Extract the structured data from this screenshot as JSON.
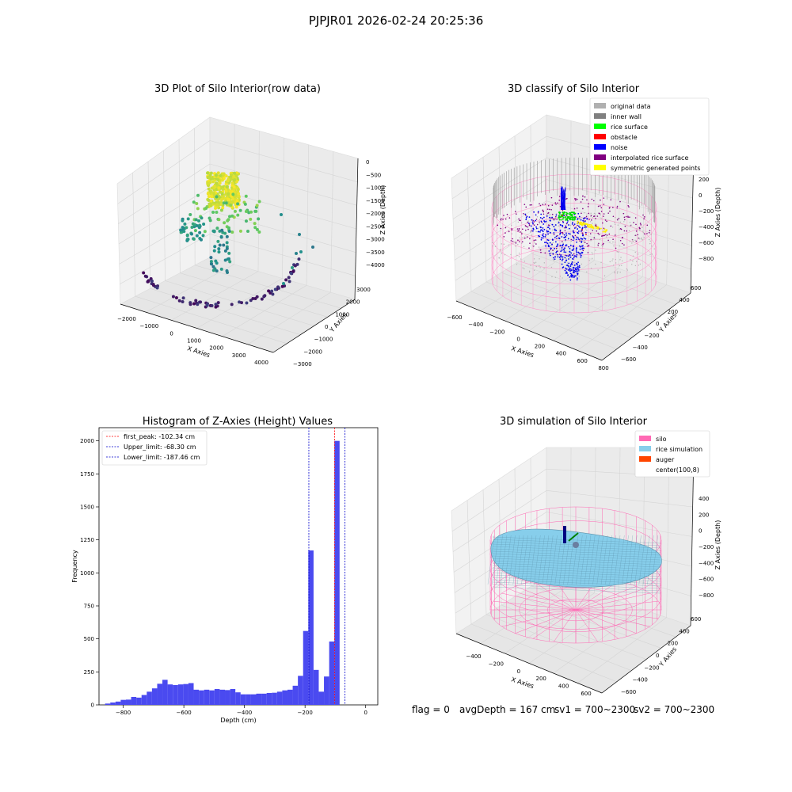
{
  "suptitle": "PJPJR01 2026-02-24 20:25:36",
  "status": {
    "flag": "flag = 0",
    "avg_depth": "avgDepth = 167 cm",
    "sv1": "sv1 = 700~2300",
    "sv2": "sv2 = 700~2300"
  },
  "chart_data": [
    {
      "type": "scatter",
      "title": "3D Plot of Silo Interior(row data)",
      "xlabel": "X Axies",
      "ylabel": "Y Axies",
      "zlabel": "Z Axies (Depth)",
      "x_ticks": [
        -2000,
        -1000,
        0,
        1000,
        2000,
        3000,
        4000
      ],
      "y_ticks": [
        -3000,
        -2000,
        -1000,
        0,
        1000,
        2000,
        3000
      ],
      "z_ticks": [
        0,
        -500,
        -1000,
        -1500,
        -2000,
        -2500,
        -3000,
        -3500,
        -4000
      ],
      "colormap": "viridis"
    },
    {
      "type": "scatter",
      "title": "3D classify of Silo Interior",
      "xlabel": "X Axies",
      "ylabel": "Y Axies",
      "zlabel": "Z Axies (Depth)",
      "x_ticks": [
        -600,
        -400,
        -200,
        0,
        200,
        400,
        600,
        800
      ],
      "y_ticks": [
        -600,
        -400,
        -200,
        0,
        200,
        400,
        600
      ],
      "z_ticks": [
        200,
        0,
        -200,
        -400,
        -600,
        -800
      ],
      "legend": [
        {
          "label": "original data",
          "color": "#b0b0b0"
        },
        {
          "label": "inner wall",
          "color": "#808080"
        },
        {
          "label": "rice surface",
          "color": "#00ff00"
        },
        {
          "label": "obstacle",
          "color": "#ff0000"
        },
        {
          "label": "noise",
          "color": "#0000ff"
        },
        {
          "label": "interpolated rice surface",
          "color": "#800080"
        },
        {
          "label": "symmetric generated points",
          "color": "#ffff00"
        }
      ],
      "legend_position": "top-right"
    },
    {
      "type": "bar",
      "title": "Histogram of Z-Axies (Height) Values",
      "xlabel": "Depth (cm)",
      "ylabel": "Frequency",
      "bar_color": "#4a4af0",
      "xlim": [
        -880,
        40
      ],
      "ylim": [
        0,
        2100
      ],
      "x_ticks": [
        -800,
        -600,
        -400,
        -200,
        0
      ],
      "y_ticks": [
        0,
        250,
        500,
        750,
        1000,
        1250,
        1500,
        1750,
        2000
      ],
      "bin_width": 17.2,
      "bin_start": -860,
      "values": [
        10,
        18,
        25,
        38,
        40,
        60,
        55,
        75,
        100,
        125,
        160,
        190,
        155,
        150,
        155,
        158,
        165,
        115,
        110,
        115,
        110,
        120,
        115,
        112,
        120,
        95,
        80,
        80,
        80,
        85,
        85,
        90,
        92,
        100,
        110,
        115,
        145,
        220,
        560,
        1170,
        265,
        100,
        215,
        480,
        2000
      ],
      "vlines": [
        {
          "label": "first_peak: -102.34 cm",
          "x": -102.34,
          "color": "#ff0000"
        },
        {
          "label": "Upper_limit: -68.30 cm",
          "x": -68.3,
          "color": "#0000cc"
        },
        {
          "label": "Lower_limit: -187.46 cm",
          "x": -187.46,
          "color": "#0000cc"
        }
      ],
      "legend_position": "top-left"
    },
    {
      "type": "surface",
      "title": "3D simulation of Silo Interior",
      "xlabel": "X Axies",
      "ylabel": "Y Axies",
      "zlabel": "Z Axies (Depth)",
      "x_ticks": [
        -400,
        -200,
        0,
        200,
        400,
        600
      ],
      "y_ticks": [
        -600,
        -400,
        -200,
        0,
        200,
        400,
        600
      ],
      "z_ticks": [
        400,
        200,
        0,
        -200,
        -400,
        -600,
        -800
      ],
      "legend": [
        {
          "label": "silo",
          "color": "#ff69b4"
        },
        {
          "label": "rice simulation",
          "color": "#87ceeb"
        },
        {
          "label": "auger",
          "color": "#ff4500"
        },
        {
          "label": "center(100,8)",
          "color": "#ffffff"
        }
      ],
      "legend_position": "top-right"
    }
  ]
}
